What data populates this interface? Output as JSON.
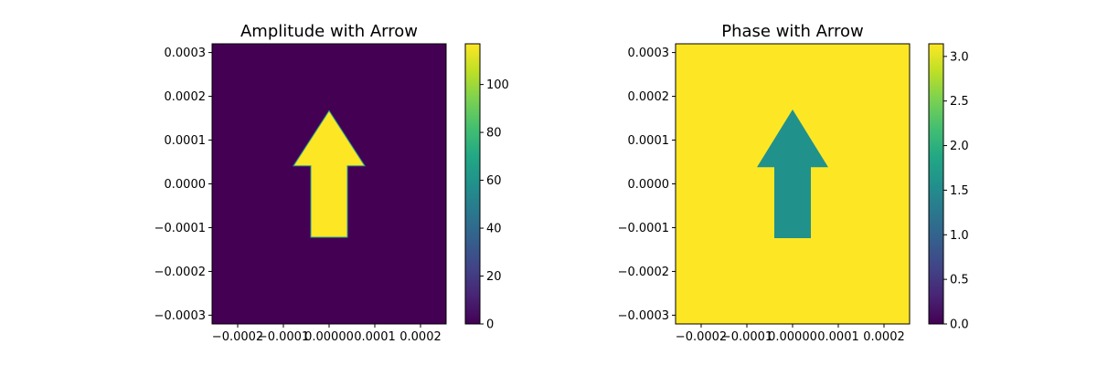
{
  "chart_data": [
    {
      "type": "heatmap",
      "title": "Amplitude with Arrow",
      "xlabel": "",
      "ylabel": "",
      "xlim": [
        -0.000256,
        0.000256
      ],
      "ylim": [
        -0.00032,
        0.00032
      ],
      "x_ticks": [
        -0.0002,
        -0.0001,
        0.0,
        0.0001,
        0.0002
      ],
      "x_tick_labels": [
        "−0.0002",
        "−0.0001",
        "0.00000",
        "0.0001",
        "0.0002"
      ],
      "y_ticks": [
        -0.0003,
        -0.0002,
        -0.0001,
        0.0,
        0.0001,
        0.0002,
        0.0003
      ],
      "y_tick_labels": [
        "−0.0003",
        "−0.0002",
        "−0.0001",
        "0.0000",
        "0.0001",
        "0.0002",
        "0.0003"
      ],
      "colormap": "viridis",
      "background_value": 0,
      "arrow_value": 117,
      "arrow_polygon": [
        [
          -4e-05,
          -0.000122
        ],
        [
          4e-05,
          -0.000122
        ],
        [
          4e-05,
          4.1e-05
        ],
        [
          7.8e-05,
          4.1e-05
        ],
        [
          0.0,
          0.000167
        ],
        [
          -7.8e-05,
          4.1e-05
        ],
        [
          -4e-05,
          4.1e-05
        ]
      ],
      "colorbar": {
        "min": 0,
        "max": 117,
        "ticks": [
          0,
          20,
          40,
          60,
          80,
          100
        ],
        "tick_labels": [
          "0",
          "20",
          "40",
          "60",
          "80",
          "100"
        ]
      }
    },
    {
      "type": "heatmap",
      "title": "Phase with Arrow",
      "xlabel": "",
      "ylabel": "",
      "xlim": [
        -0.000256,
        0.000256
      ],
      "ylim": [
        -0.00032,
        0.00032
      ],
      "x_ticks": [
        -0.0002,
        -0.0001,
        0.0,
        0.0001,
        0.0002
      ],
      "x_tick_labels": [
        "−0.0002",
        "−0.0001",
        "0.00000",
        "0.0001",
        "0.0002"
      ],
      "y_ticks": [
        -0.0003,
        -0.0002,
        -0.0001,
        0.0,
        0.0001,
        0.0002,
        0.0003
      ],
      "y_tick_labels": [
        "−0.0003",
        "−0.0002",
        "−0.0001",
        "0.0000",
        "0.0001",
        "0.0002",
        "0.0003"
      ],
      "colormap": "viridis",
      "background_value": 3.14159,
      "arrow_value": 1.5708,
      "arrow_polygon": [
        [
          -4e-05,
          -0.000124
        ],
        [
          4e-05,
          -0.000124
        ],
        [
          4e-05,
          3.8e-05
        ],
        [
          7.8e-05,
          3.8e-05
        ],
        [
          0.0,
          0.00017
        ],
        [
          -7.8e-05,
          3.8e-05
        ],
        [
          -4e-05,
          3.8e-05
        ]
      ],
      "colorbar": {
        "min": 0,
        "max": 3.14159,
        "ticks": [
          0,
          0.5,
          1.0,
          1.5,
          2.0,
          2.5,
          3.0
        ],
        "tick_labels": [
          "0.0",
          "0.5",
          "1.0",
          "1.5",
          "2.0",
          "2.5",
          "3.0"
        ]
      }
    }
  ]
}
